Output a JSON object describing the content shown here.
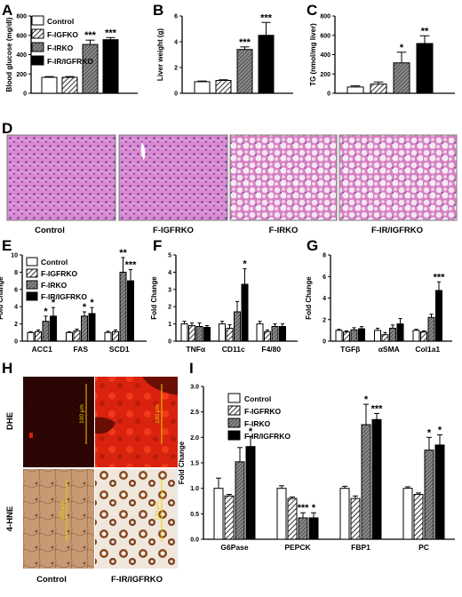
{
  "panel_labels": {
    "A": "A",
    "B": "B",
    "C": "C",
    "D": "D",
    "E": "E",
    "F": "F",
    "G": "G",
    "H": "H",
    "I": "I"
  },
  "legend": [
    "Control",
    "F-IGFKO",
    "F-IRKO",
    "F-IR/IGFRKO"
  ],
  "legend_e": [
    "Control",
    "F-IGFRKO",
    "F-IRKO",
    "F-IR/IGFRKO"
  ],
  "legend_i": [
    "Control",
    "F-IGFRKO",
    "F-IRKO",
    "F-IR/IGFRKO"
  ],
  "histology_captions": [
    "Control",
    "F-IGFRKO",
    "F-IRKO",
    "F-IR/IGFRKO"
  ],
  "stain_rows": [
    "DHE",
    "4-HNE"
  ],
  "stain_cols": [
    "Control",
    "F-IR/IGFRKO"
  ],
  "scale_bar": "100 μm",
  "colors": {
    "control": "#ffffff",
    "igfrko": "hatch",
    "irko": "dark-hatch",
    "double": "#000000",
    "histology": "#d77fc4",
    "dhe": "#d4200c",
    "hne": "#b98a63"
  },
  "chart_data": [
    {
      "panel": "A",
      "type": "bar",
      "ylabel": "Blood glucose (mg/dl)",
      "ylim": [
        0,
        800
      ],
      "yticks": [
        "0",
        "200",
        "400",
        "600",
        "800"
      ],
      "categories": [
        ""
      ],
      "series": [
        {
          "name": "Control",
          "values": [
            165
          ],
          "err": [
            8
          ]
        },
        {
          "name": "F-IGFKO",
          "values": [
            165
          ],
          "err": [
            8
          ]
        },
        {
          "name": "F-IRKO",
          "values": [
            505
          ],
          "err": [
            45
          ]
        },
        {
          "name": "F-IR/IGFRKO",
          "values": [
            555
          ],
          "err": [
            22
          ]
        }
      ],
      "annotations": [
        "",
        "",
        "***",
        "***"
      ]
    },
    {
      "panel": "B",
      "type": "bar",
      "ylabel": "Liver weight (g)",
      "ylim": [
        0,
        6
      ],
      "yticks": [
        "0",
        "2",
        "4",
        "6"
      ],
      "categories": [
        ""
      ],
      "series": [
        {
          "name": "Control",
          "values": [
            0.9
          ],
          "err": [
            0.05
          ]
        },
        {
          "name": "F-IGFKO",
          "values": [
            1.0
          ],
          "err": [
            0.05
          ]
        },
        {
          "name": "F-IRKO",
          "values": [
            3.4
          ],
          "err": [
            0.2
          ]
        },
        {
          "name": "F-IR/IGFRKO",
          "values": [
            4.5
          ],
          "err": [
            1.0
          ]
        }
      ],
      "annotations": [
        "",
        "",
        "***",
        "***"
      ]
    },
    {
      "panel": "C",
      "type": "bar",
      "ylabel": "TG (nmol/mg liver)",
      "ylim": [
        0,
        800
      ],
      "yticks": [
        "0",
        "200",
        "400",
        "600",
        "800"
      ],
      "categories": [
        ""
      ],
      "series": [
        {
          "name": "Control",
          "values": [
            65
          ],
          "err": [
            12
          ]
        },
        {
          "name": "F-IGFKO",
          "values": [
            95
          ],
          "err": [
            22
          ]
        },
        {
          "name": "F-IRKO",
          "values": [
            315
          ],
          "err": [
            110
          ]
        },
        {
          "name": "F-IR/IGFRKO",
          "values": [
            515
          ],
          "err": [
            80
          ]
        }
      ],
      "annotations": [
        "",
        "",
        "*",
        "**"
      ]
    },
    {
      "panel": "E",
      "type": "bar",
      "ylabel": "Fold Change",
      "ylim": [
        0,
        10
      ],
      "yticks": [
        "0",
        "2",
        "4",
        "6",
        "8",
        "10"
      ],
      "categories": [
        "ACC1",
        "FAS",
        "SCD1"
      ],
      "series": [
        {
          "name": "Control",
          "values": [
            1,
            1,
            1
          ],
          "err": [
            0.1,
            0.1,
            0.15
          ]
        },
        {
          "name": "F-IGFRKO",
          "values": [
            1.1,
            1.2,
            1.1
          ],
          "err": [
            0.2,
            0.2,
            0.2
          ]
        },
        {
          "name": "F-IRKO",
          "values": [
            2.3,
            2.9,
            8.0
          ],
          "err": [
            0.6,
            0.5,
            1.7
          ]
        },
        {
          "name": "F-IR/IGFRKO",
          "values": [
            2.9,
            3.2,
            7.0
          ],
          "err": [
            1.0,
            0.7,
            1.3
          ]
        }
      ],
      "annotations": [
        [
          "",
          "",
          "*",
          "*"
        ],
        [
          "",
          "",
          "*",
          "*"
        ],
        [
          "",
          "",
          "**",
          "***"
        ]
      ]
    },
    {
      "panel": "F",
      "type": "bar",
      "ylabel": "Fold Change",
      "ylim": [
        0,
        5
      ],
      "yticks": [
        "0",
        "1",
        "2",
        "3",
        "4",
        "5"
      ],
      "categories": [
        "TNFα",
        "CD11c",
        "F4/80"
      ],
      "series": [
        {
          "name": "Control",
          "values": [
            1,
            1,
            1
          ],
          "err": [
            0.15,
            0.15,
            0.15
          ]
        },
        {
          "name": "F-IGFRKO",
          "values": [
            0.9,
            0.75,
            0.55
          ],
          "err": [
            0.15,
            0.2,
            0.1
          ]
        },
        {
          "name": "F-IRKO",
          "values": [
            0.85,
            1.7,
            0.85
          ],
          "err": [
            0.2,
            0.6,
            0.15
          ]
        },
        {
          "name": "F-IR/IGFRKO",
          "values": [
            0.8,
            3.3,
            0.85
          ],
          "err": [
            0.1,
            0.9,
            0.15
          ]
        }
      ],
      "annotations": [
        [
          "",
          "",
          "",
          ""
        ],
        [
          "",
          "",
          "",
          "*"
        ],
        [
          "",
          "",
          "",
          ""
        ]
      ]
    },
    {
      "panel": "G",
      "type": "bar",
      "ylabel": "Fold Change",
      "ylim": [
        0,
        8
      ],
      "yticks": [
        "0",
        "2",
        "4",
        "6",
        "8"
      ],
      "categories": [
        "TGFβ",
        "αSMA",
        "Col1a1"
      ],
      "series": [
        {
          "name": "Control",
          "values": [
            1,
            1,
            1
          ],
          "err": [
            0.1,
            0.2,
            0.1
          ]
        },
        {
          "name": "F-IGFRKO",
          "values": [
            0.85,
            0.6,
            0.85
          ],
          "err": [
            0.1,
            0.2,
            0.1
          ]
        },
        {
          "name": "F-IRKO",
          "values": [
            1.05,
            1.2,
            2.2
          ],
          "err": [
            0.2,
            0.3,
            0.3
          ]
        },
        {
          "name": "F-IR/IGFRKO",
          "values": [
            1.15,
            1.6,
            4.7
          ],
          "err": [
            0.2,
            0.5,
            0.8
          ]
        }
      ],
      "annotations": [
        [
          "",
          "",
          "",
          ""
        ],
        [
          "",
          "",
          "",
          ""
        ],
        [
          "",
          "",
          "",
          "***"
        ]
      ]
    },
    {
      "panel": "I",
      "type": "bar",
      "ylabel": "Fold Change",
      "ylim": [
        0,
        3
      ],
      "yticks": [
        "0.0",
        "0.5",
        "1.0",
        "1.5",
        "2.0",
        "2.5",
        "3.0"
      ],
      "categories": [
        "G6Pase",
        "PEPCK",
        "FBP1",
        "PC"
      ],
      "series": [
        {
          "name": "Control",
          "values": [
            1.0,
            1.0,
            1.0,
            1.0
          ],
          "err": [
            0.2,
            0.05,
            0.04,
            0.03
          ]
        },
        {
          "name": "F-IGFRKO",
          "values": [
            0.85,
            0.8,
            0.8,
            0.88
          ],
          "err": [
            0.03,
            0.03,
            0.05,
            0.03
          ]
        },
        {
          "name": "F-IRKO",
          "values": [
            1.52,
            0.42,
            2.25,
            1.75
          ],
          "err": [
            0.28,
            0.1,
            0.4,
            0.25
          ]
        },
        {
          "name": "F-IR/IGFRKO",
          "values": [
            1.82,
            0.42,
            2.35,
            1.85
          ],
          "err": [
            0.2,
            0.1,
            0.12,
            0.2
          ]
        }
      ],
      "annotations": [
        [
          "",
          "",
          "",
          "*"
        ],
        [
          "",
          "",
          "***",
          "*"
        ],
        [
          "",
          "",
          "*",
          "***"
        ],
        [
          "",
          "",
          "*",
          "*"
        ]
      ]
    }
  ]
}
